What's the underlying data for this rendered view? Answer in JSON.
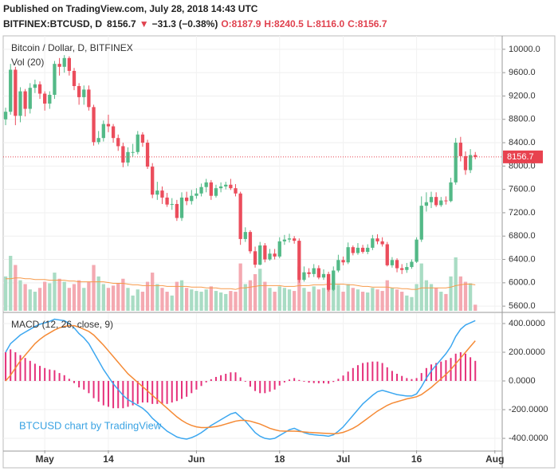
{
  "header": {
    "published": "Published on TradingView.com, July 28, 2018 14:43 UTC",
    "symbol": "BITFINEX:BTCUSD, D",
    "quote": [
      "8156.7",
      "▼",
      "−31.3 (−0.38%)",
      "O:8187.9",
      "H:8240.5",
      "L:8116.0",
      "C:8156.7"
    ]
  },
  "chart_data": {
    "type": "candlestick",
    "title": "Bitcoin / Dollar, D, BITFINEX",
    "watermark": "BTCUSD chart by TradingView",
    "up_color": "#53b987",
    "down_color": "#eb4d5c",
    "last_price_color": "#e8424f",
    "grid": true,
    "x": [
      0,
      1,
      2,
      3,
      4,
      5,
      6,
      7,
      8,
      9,
      10,
      11,
      12,
      13,
      14,
      15,
      16,
      17,
      18,
      19,
      20,
      21,
      22,
      23,
      24,
      25,
      26,
      27,
      28,
      29,
      30,
      31,
      32,
      33,
      34,
      35,
      36,
      37,
      38,
      39,
      40,
      41,
      42,
      43,
      44,
      45,
      46,
      47,
      48,
      49,
      50,
      51,
      52,
      53,
      54,
      55,
      56,
      57,
      58,
      59,
      60,
      61,
      62,
      63,
      64,
      65,
      66,
      67,
      68,
      69,
      70,
      71,
      72,
      73,
      74,
      75,
      76,
      77,
      78,
      79,
      80,
      81,
      82,
      83,
      84,
      85,
      86,
      87,
      88,
      89,
      90,
      91,
      92,
      93,
      94,
      95,
      96
    ],
    "open": [
      8800,
      8930,
      9650,
      8860,
      9280,
      8980,
      9340,
      9400,
      9240,
      9070,
      9220,
      9750,
      9700,
      9850,
      9630,
      9370,
      9180,
      9310,
      9010,
      8410,
      8480,
      8720,
      8680,
      8480,
      8340,
      8060,
      8240,
      8240,
      8540,
      8400,
      7990,
      7510,
      7580,
      7460,
      7340,
      7350,
      7110,
      7460,
      7400,
      7490,
      7530,
      7640,
      7720,
      7490,
      7620,
      7650,
      7680,
      7620,
      7530,
      6750,
      6870,
      6540,
      6310,
      6640,
      6400,
      6500,
      6450,
      6710,
      6740,
      6760,
      6720,
      6050,
      6180,
      6150,
      6250,
      6090,
      6150,
      5880,
      6210,
      6390,
      6350,
      6610,
      6510,
      6600,
      6530,
      6600,
      6760,
      6710,
      6660,
      6300,
      6390,
      6250,
      6220,
      6270,
      6360,
      6740,
      7320,
      7380,
      7470,
      7330,
      7410,
      7400,
      7720,
      8400,
      8170,
      7930,
      8187.9
    ],
    "high": [
      9000,
      9750,
      9700,
      9350,
      9320,
      9420,
      9480,
      9450,
      9280,
      9280,
      9800,
      9850,
      9900,
      9880,
      9680,
      9420,
      9380,
      9380,
      9050,
      8600,
      8780,
      8880,
      8720,
      8540,
      8400,
      8320,
      8380,
      8600,
      8580,
      8450,
      8050,
      7730,
      7650,
      7540,
      7450,
      7420,
      7550,
      7560,
      7590,
      7620,
      7700,
      7780,
      7760,
      7680,
      7720,
      7730,
      7780,
      7690,
      7560,
      6950,
      6900,
      6620,
      6700,
      6680,
      6580,
      6580,
      6780,
      6820,
      6840,
      6800,
      6760,
      6280,
      6250,
      6320,
      6300,
      6230,
      6190,
      6280,
      6480,
      6450,
      6690,
      6640,
      6680,
      6650,
      6660,
      6820,
      6830,
      6780,
      6700,
      6440,
      6420,
      6320,
      6340,
      6400,
      6780,
      7480,
      7550,
      7560,
      7550,
      7470,
      7480,
      7800,
      8480,
      8500,
      8250,
      8290,
      8240.5
    ],
    "low": [
      8700,
      8880,
      8700,
      8750,
      8850,
      8900,
      9250,
      9150,
      8950,
      8980,
      9150,
      9550,
      9600,
      9550,
      9300,
      9050,
      9050,
      8950,
      8350,
      8370,
      8420,
      8580,
      8400,
      8260,
      7980,
      8000,
      8160,
      8200,
      8330,
      7950,
      7450,
      7420,
      7350,
      7300,
      7250,
      7060,
      7060,
      7330,
      7340,
      7440,
      7480,
      7550,
      7420,
      7460,
      7550,
      7600,
      7590,
      7480,
      6650,
      6700,
      6500,
      6260,
      6300,
      6350,
      6380,
      6400,
      6420,
      6650,
      6690,
      6670,
      6000,
      6020,
      6090,
      6100,
      6060,
      6050,
      5850,
      5860,
      6180,
      6300,
      6320,
      6470,
      6480,
      6500,
      6490,
      6560,
      6660,
      6620,
      6280,
      6260,
      6180,
      6150,
      6170,
      6240,
      6340,
      6700,
      7220,
      7280,
      7300,
      7300,
      7340,
      7380,
      7680,
      8080,
      7850,
      7880,
      8116
    ],
    "close": [
      8930,
      9650,
      8860,
      9280,
      8980,
      9340,
      9400,
      9240,
      9070,
      9220,
      9750,
      9700,
      9850,
      9630,
      9370,
      9180,
      9310,
      9010,
      8410,
      8480,
      8720,
      8680,
      8480,
      8340,
      8060,
      8240,
      8240,
      8540,
      8400,
      7990,
      7510,
      7580,
      7460,
      7340,
      7350,
      7110,
      7460,
      7400,
      7490,
      7530,
      7640,
      7720,
      7490,
      7620,
      7650,
      7680,
      7620,
      7530,
      6750,
      6870,
      6540,
      6310,
      6640,
      6400,
      6500,
      6450,
      6710,
      6740,
      6760,
      6720,
      6050,
      6180,
      6150,
      6250,
      6090,
      6150,
      5880,
      6210,
      6390,
      6350,
      6610,
      6510,
      6600,
      6530,
      6600,
      6760,
      6710,
      6660,
      6300,
      6390,
      6250,
      6220,
      6270,
      6360,
      6740,
      7320,
      7380,
      7470,
      7330,
      7410,
      7400,
      7720,
      8400,
      8170,
      7930,
      8187.9,
      8156.7
    ],
    "xlim": [
      -0.5,
      101.5
    ],
    "xticks": [
      {
        "value": 8,
        "label": "May"
      },
      {
        "value": 21,
        "label": "14"
      },
      {
        "value": 39,
        "label": "Jun"
      },
      {
        "value": 56,
        "label": "18"
      },
      {
        "value": 69,
        "label": "Jul"
      },
      {
        "value": 84,
        "label": "16"
      },
      {
        "value": 100,
        "label": "Aug"
      }
    ],
    "ylim": [
      5520,
      10230
    ],
    "yticks": [
      {
        "value": 5600,
        "label": "5600.0"
      },
      {
        "value": 6000,
        "label": "6000.0"
      },
      {
        "value": 6400,
        "label": "6400.0"
      },
      {
        "value": 6800,
        "label": "6800.0"
      },
      {
        "value": 7200,
        "label": "7200.0"
      },
      {
        "value": 7600,
        "label": "7600.0"
      },
      {
        "value": 8000,
        "label": "8000.0"
      },
      {
        "value": 8400,
        "label": "8400.0"
      },
      {
        "value": 8800,
        "label": "8800.0"
      },
      {
        "value": 9200,
        "label": "9200.0"
      },
      {
        "value": 9600,
        "label": "9600.0"
      },
      {
        "value": 10000,
        "label": "10000.0"
      }
    ],
    "volume": {
      "label": "Vol (20)",
      "up_color": "#a9dcc4",
      "down_color": "#f4a9b1",
      "ma_color": "#f79a4a",
      "ylim": [
        0,
        360
      ],
      "values": [
        45,
        72,
        60,
        40,
        35,
        28,
        25,
        30,
        38,
        36,
        50,
        42,
        38,
        30,
        35,
        40,
        30,
        38,
        60,
        45,
        35,
        30,
        33,
        36,
        42,
        30,
        20,
        28,
        25,
        38,
        50,
        35,
        30,
        25,
        20,
        38,
        40,
        30,
        28,
        26,
        25,
        28,
        32,
        26,
        24,
        22,
        26,
        25,
        62,
        35,
        40,
        48,
        55,
        38,
        30,
        25,
        32,
        30,
        28,
        26,
        58,
        30,
        25,
        32,
        28,
        30,
        42,
        38,
        34,
        25,
        35,
        30,
        28,
        25,
        24,
        30,
        28,
        26,
        40,
        30,
        28,
        25,
        20,
        18,
        35,
        62,
        40,
        35,
        30,
        25,
        22,
        45,
        70,
        45,
        38,
        36,
        8
      ],
      "ma": [
        42,
        42,
        43,
        43,
        42,
        42,
        41,
        41,
        41,
        40,
        40,
        40,
        40,
        39,
        39,
        38,
        38,
        38,
        38,
        38,
        38,
        37,
        36,
        36,
        36,
        35,
        34,
        34,
        33,
        33,
        33,
        33,
        33,
        32,
        32,
        32,
        32,
        32,
        31,
        31,
        31,
        30,
        30,
        30,
        29,
        29,
        29,
        28,
        30,
        30,
        31,
        32,
        33,
        33,
        33,
        33,
        33,
        32,
        32,
        32,
        33,
        33,
        33,
        34,
        34,
        34,
        35,
        35,
        35,
        35,
        34,
        34,
        33,
        32,
        32,
        31,
        31,
        31,
        31,
        30,
        30,
        29,
        29,
        28,
        28,
        30,
        30,
        30,
        30,
        30,
        30,
        31,
        33,
        34,
        35,
        35,
        34
      ]
    },
    "macd": {
      "label": "MACD (12, 26, close, 9)",
      "macd_color": "#3ca7f0",
      "signal_color": "#f58a35",
      "histogram_color": "#e5307a",
      "ylim": [
        -483,
        472
      ],
      "yticks": [
        {
          "value": 400,
          "label": "400.0000"
        },
        {
          "value": 200,
          "label": "200.0000"
        },
        {
          "value": 0,
          "label": "0.0000"
        },
        {
          "value": -200,
          "label": "-200.0000"
        },
        {
          "value": -400,
          "label": "-400.0000"
        }
      ],
      "macd": [
        200,
        260,
        290,
        320,
        340,
        360,
        380,
        395,
        405,
        415,
        430,
        425,
        420,
        400,
        370,
        330,
        300,
        260,
        200,
        140,
        80,
        30,
        -20,
        -60,
        -100,
        -130,
        -150,
        -170,
        -190,
        -220,
        -260,
        -290,
        -320,
        -350,
        -370,
        -390,
        -400,
        -405,
        -395,
        -380,
        -360,
        -335,
        -310,
        -290,
        -270,
        -250,
        -230,
        -220,
        -250,
        -280,
        -320,
        -360,
        -385,
        -400,
        -405,
        -400,
        -380,
        -360,
        -340,
        -330,
        -345,
        -360,
        -370,
        -375,
        -378,
        -380,
        -385,
        -375,
        -350,
        -320,
        -280,
        -240,
        -200,
        -160,
        -130,
        -100,
        -75,
        -65,
        -75,
        -85,
        -95,
        -100,
        -105,
        -105,
        -90,
        -40,
        20,
        70,
        110,
        150,
        190,
        240,
        310,
        360,
        390,
        405,
        420
      ],
      "signal": [
        0,
        40,
        90,
        140,
        180,
        220,
        260,
        290,
        315,
        335,
        355,
        370,
        380,
        385,
        385,
        375,
        360,
        345,
        320,
        285,
        250,
        210,
        170,
        130,
        90,
        50,
        20,
        -10,
        -40,
        -70,
        -100,
        -130,
        -160,
        -190,
        -220,
        -250,
        -275,
        -295,
        -310,
        -320,
        -325,
        -325,
        -322,
        -318,
        -310,
        -300,
        -290,
        -280,
        -275,
        -275,
        -280,
        -290,
        -300,
        -315,
        -330,
        -340,
        -348,
        -350,
        -350,
        -350,
        -352,
        -355,
        -358,
        -360,
        -362,
        -364,
        -366,
        -368,
        -365,
        -358,
        -345,
        -330,
        -310,
        -285,
        -260,
        -235,
        -210,
        -190,
        -170,
        -155,
        -145,
        -135,
        -125,
        -118,
        -110,
        -95,
        -70,
        -45,
        -15,
        15,
        45,
        80,
        120,
        160,
        200,
        240,
        280
      ],
      "histogram": [
        200,
        220,
        200,
        180,
        160,
        140,
        120,
        105,
        90,
        80,
        75,
        55,
        40,
        15,
        -15,
        -45,
        -60,
        -85,
        -120,
        -145,
        -170,
        -180,
        -190,
        -190,
        -190,
        -180,
        -170,
        -160,
        -150,
        -150,
        -160,
        -160,
        -160,
        -160,
        -150,
        -140,
        -125,
        -110,
        -85,
        -60,
        -35,
        -10,
        12,
        28,
        40,
        50,
        60,
        60,
        25,
        -5,
        -40,
        -70,
        -85,
        -85,
        -75,
        -60,
        -32,
        -10,
        10,
        20,
        7,
        -5,
        -12,
        -15,
        -16,
        -16,
        -19,
        -7,
        15,
        38,
        65,
        90,
        110,
        125,
        130,
        135,
        135,
        125,
        95,
        70,
        50,
        35,
        20,
        13,
        20,
        55,
        90,
        115,
        125,
        135,
        145,
        160,
        190,
        200,
        190,
        165,
        140
      ]
    }
  }
}
